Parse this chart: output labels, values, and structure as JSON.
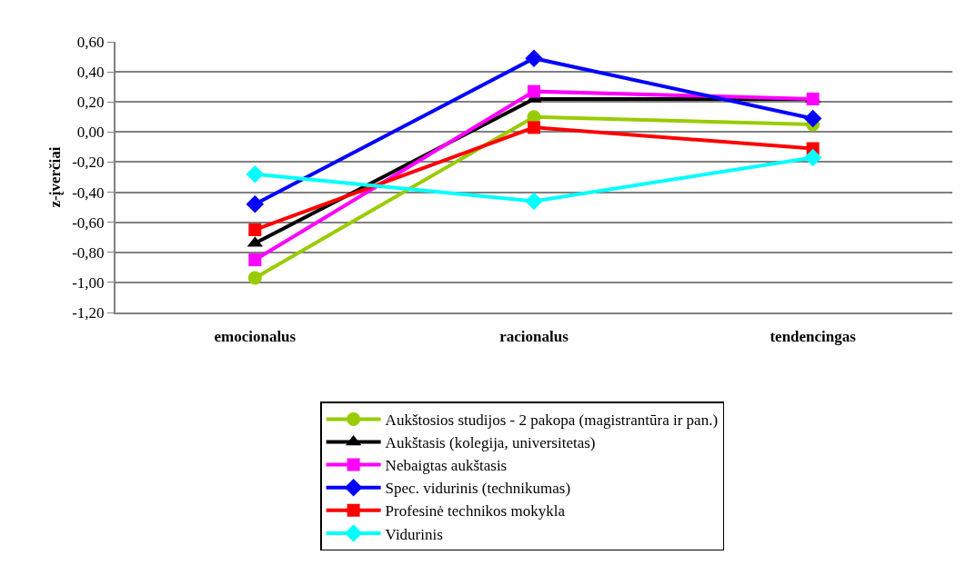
{
  "chart_data": {
    "type": "line",
    "ylabel": "z-įverčiai",
    "categories": [
      "emocionalus",
      "racionalus",
      "tendencingas"
    ],
    "series": [
      {
        "name": "Aukštosios studijos - 2 pakopa (magistrantūra ir pan.)",
        "color": "#99cc00",
        "marker": "circle",
        "values": [
          -0.97,
          0.1,
          0.05
        ]
      },
      {
        "name": "Aukštasis (kolegija, universitetas)",
        "color": "#000000",
        "marker": "triangle",
        "values": [
          -0.74,
          0.22,
          0.22
        ]
      },
      {
        "name": "Nebaigtas aukštasis",
        "color": "#ff00ff",
        "marker": "square",
        "values": [
          -0.85,
          0.27,
          0.22
        ]
      },
      {
        "name": "Spec. vidurinis (technikumas)",
        "color": "#0000ff",
        "marker": "diamond",
        "values": [
          -0.48,
          0.49,
          0.09
        ]
      },
      {
        "name": "Profesinė technikos mokykla",
        "color": "#ff0000",
        "marker": "square",
        "values": [
          -0.65,
          0.03,
          -0.11
        ]
      },
      {
        "name": "Vidurinis",
        "color": "#00ffff",
        "marker": "diamond",
        "values": [
          -0.28,
          -0.46,
          -0.17
        ]
      }
    ],
    "ylim": [
      -1.2,
      0.6
    ],
    "yticks": [
      {
        "value": -1.2,
        "label": "-1,20"
      },
      {
        "value": -1.0,
        "label": "-1,00"
      },
      {
        "value": -0.8,
        "label": "-0,80"
      },
      {
        "value": -0.6,
        "label": "-0,60"
      },
      {
        "value": -0.4,
        "label": "-0,40"
      },
      {
        "value": -0.2,
        "label": "-0,20"
      },
      {
        "value": 0.0,
        "label": "0,00"
      },
      {
        "value": 0.2,
        "label": "0,20"
      },
      {
        "value": 0.4,
        "label": "0,40"
      },
      {
        "value": 0.6,
        "label": "0,60"
      }
    ],
    "grid": "y",
    "legend": "bottom",
    "line_style": "solid"
  }
}
